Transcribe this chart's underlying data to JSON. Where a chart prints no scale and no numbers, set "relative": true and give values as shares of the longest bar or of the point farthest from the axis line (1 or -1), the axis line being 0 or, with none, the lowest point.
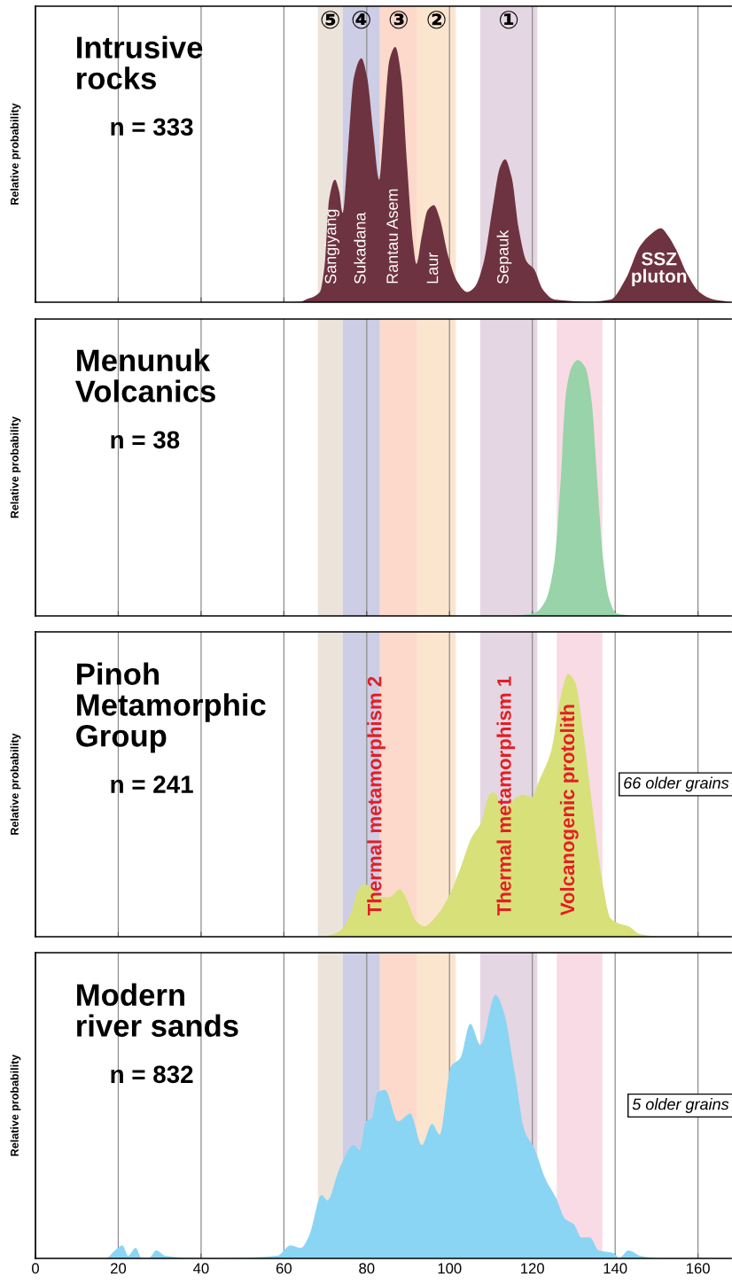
{
  "chart_data": [
    {
      "type": "area",
      "relative": true,
      "title": "Intrusive\nrocks",
      "subtitle": "n = 333",
      "ylabel": "Relative probability",
      "xlim": [
        0,
        168
      ],
      "xticks": [
        0,
        20,
        40,
        60,
        80,
        100,
        120,
        140,
        160
      ],
      "tick_labels": false,
      "grid": "x",
      "bands": [
        {
          "axis": "x",
          "from": 68.2,
          "to": 74.2,
          "label": "⑤",
          "color": "#ece3da"
        },
        {
          "axis": "x",
          "from": 74.2,
          "to": 83.2,
          "label": "④",
          "color": "#cdcde6"
        },
        {
          "axis": "x",
          "from": 83.2,
          "to": 92.2,
          "label": "③",
          "color": "#fdd9cb"
        },
        {
          "axis": "x",
          "from": 92.2,
          "to": 101.5,
          "label": "②",
          "color": "#fbe5cf"
        },
        {
          "axis": "x",
          "from": 107.4,
          "to": 121.2,
          "label": "①",
          "color": "#e4d6e2"
        }
      ],
      "annotations": [
        "Sangiyang",
        "Sukadana",
        "Rantau Asem",
        "Laur",
        "Sepauk",
        "SSZ\npluton"
      ],
      "series": [
        {
          "color": "#6e3340",
          "x": [
            60,
            64.1,
            65.3,
            68.7,
            69.8,
            70.9,
            72.3,
            73.4,
            74.2,
            75.5,
            76.9,
            78.7,
            80.1,
            81.6,
            83.0,
            84.0,
            85.5,
            86.9,
            88.3,
            89.7,
            91.2,
            92.0,
            93.3,
            94.7,
            96.2,
            97.6,
            99.7,
            101.9,
            104.3,
            106.1,
            108.3,
            110.4,
            112.2,
            113.4,
            115.0,
            116.8,
            118.6,
            120.4,
            122.5,
            125.4,
            133.9,
            138.9,
            142.5,
            146.0,
            148.9,
            151.0,
            152.8,
            154.6,
            157.4,
            160.3,
            163.8,
            167.2
          ],
          "values": [
            0,
            0.002,
            0.01,
            0.04,
            0.14,
            0.4,
            0.48,
            0.43,
            0.35,
            0.6,
            0.88,
            0.956,
            0.88,
            0.66,
            0.48,
            0.66,
            0.95,
            1.0,
            0.89,
            0.55,
            0.23,
            0.15,
            0.26,
            0.36,
            0.38,
            0.33,
            0.18,
            0.08,
            0.04,
            0.06,
            0.16,
            0.37,
            0.53,
            0.56,
            0.49,
            0.28,
            0.16,
            0.13,
            0.05,
            0.01,
            0.002,
            0.01,
            0.09,
            0.22,
            0.27,
            0.29,
            0.26,
            0.21,
            0.11,
            0.04,
            0.01,
            0.002
          ]
        }
      ]
    },
    {
      "type": "area",
      "relative": true,
      "title": "Menunuk\nVolcanics",
      "subtitle": "n = 38",
      "ylabel": "Relative probability",
      "xlim": [
        0,
        168
      ],
      "xticks": [
        0,
        20,
        40,
        60,
        80,
        100,
        120,
        140,
        160
      ],
      "tick_labels": false,
      "grid": "x",
      "bands": [
        {
          "axis": "x",
          "from": 68.2,
          "to": 74.2,
          "color": "#ece3da"
        },
        {
          "axis": "x",
          "from": 74.2,
          "to": 83.2,
          "color": "#cdcde6"
        },
        {
          "axis": "x",
          "from": 83.2,
          "to": 92.2,
          "color": "#fdd9cb"
        },
        {
          "axis": "x",
          "from": 92.2,
          "to": 101.5,
          "color": "#fbe5cf"
        },
        {
          "axis": "x",
          "from": 107.4,
          "to": 121.2,
          "color": "#e4d6e2"
        },
        {
          "axis": "x",
          "from": 125.9,
          "to": 136.9,
          "color": "#f8dbe4"
        }
      ],
      "series": [
        {
          "color": "#98d3a9",
          "x": [
            115.4,
            120.4,
            123.2,
            125.4,
            126.8,
            128.2,
            129.6,
            131.0,
            132.8,
            134.3,
            135.7,
            137.1,
            138.5,
            140.3,
            144.2
          ],
          "values": [
            0,
            0.01,
            0.06,
            0.22,
            0.52,
            0.88,
            0.976,
            1.0,
            0.97,
            0.84,
            0.52,
            0.22,
            0.07,
            0.01,
            0
          ]
        }
      ]
    },
    {
      "type": "area",
      "relative": true,
      "title": "Pinoh\nMetamorphic\nGroup",
      "subtitle": "n = 241",
      "ylabel": "Relative probability",
      "xlim": [
        0,
        168
      ],
      "xticks": [
        0,
        20,
        40,
        60,
        80,
        100,
        120,
        140,
        160
      ],
      "tick_labels": false,
      "grid": "x",
      "bands": [
        {
          "axis": "x",
          "from": 68.2,
          "to": 74.2,
          "color": "#ece3da"
        },
        {
          "axis": "x",
          "from": 74.2,
          "to": 83.2,
          "color": "#cdcde6"
        },
        {
          "axis": "x",
          "from": 83.2,
          "to": 92.2,
          "color": "#fdd9cb"
        },
        {
          "axis": "x",
          "from": 92.2,
          "to": 101.5,
          "color": "#fbe5cf"
        },
        {
          "axis": "x",
          "from": 107.4,
          "to": 121.2,
          "color": "#e4d6e2"
        },
        {
          "axis": "x",
          "from": 125.9,
          "to": 136.9,
          "color": "#f8dbe4"
        }
      ],
      "annotations": [
        "Thermal metamorphism 2",
        "Thermal metamorphism 1",
        "Volcanogenic protolith",
        "66 older grains"
      ],
      "series": [
        {
          "color": "#d8e07a",
          "x": [
            69.8,
            73.4,
            76.2,
            78.0,
            79.4,
            81.2,
            83.3,
            85.5,
            88.0,
            89.7,
            91.9,
            94.0,
            96.9,
            99.7,
            102.6,
            105.4,
            107.5,
            109.7,
            110.7,
            113.2,
            116.1,
            117.9,
            119.7,
            121.8,
            124.6,
            126.8,
            128.6,
            130.3,
            132.5,
            134.6,
            136.8,
            138.9,
            141.0,
            143.2,
            146.0,
            150.3
          ],
          "values": [
            0,
            0.02,
            0.09,
            0.18,
            0.2,
            0.19,
            0.15,
            0.15,
            0.18,
            0.14,
            0.06,
            0.04,
            0.08,
            0.15,
            0.26,
            0.38,
            0.43,
            0.54,
            0.55,
            0.49,
            0.53,
            0.54,
            0.53,
            0.6,
            0.71,
            0.91,
            1.0,
            0.97,
            0.75,
            0.48,
            0.22,
            0.07,
            0.05,
            0.04,
            0.01,
            0
          ]
        }
      ]
    },
    {
      "type": "area",
      "relative": true,
      "title": "Modern\nriver sands",
      "subtitle": "n = 832",
      "ylabel": "Relative probability",
      "xlim": [
        0,
        168
      ],
      "xticks": [
        0,
        20,
        40,
        60,
        80,
        100,
        120,
        140,
        160
      ],
      "tick_labels": "x",
      "grid": "x",
      "bands": [
        {
          "axis": "x",
          "from": 68.2,
          "to": 74.2,
          "color": "#ece3da"
        },
        {
          "axis": "x",
          "from": 74.2,
          "to": 83.2,
          "color": "#cdcde6"
        },
        {
          "axis": "x",
          "from": 83.2,
          "to": 92.2,
          "color": "#fdd9cb"
        },
        {
          "axis": "x",
          "from": 92.2,
          "to": 101.5,
          "color": "#fbe5cf"
        },
        {
          "axis": "x",
          "from": 107.4,
          "to": 121.2,
          "color": "#e4d6e2"
        },
        {
          "axis": "x",
          "from": 125.9,
          "to": 136.9,
          "color": "#f8dbe4"
        }
      ],
      "annotations": [
        "5 older grains"
      ],
      "series": [
        {
          "color": "#8ad5f3",
          "x": [
            0,
            17.1,
            19.2,
            21.0,
            22.4,
            24.2,
            25.6,
            27.4,
            29.2,
            31.3,
            41.3,
            58.4,
            61.6,
            64.1,
            66.2,
            69.1,
            70.5,
            73.4,
            76.9,
            78.3,
            79.8,
            81.2,
            82.6,
            84.4,
            87.6,
            90.5,
            93.3,
            95.8,
            97.6,
            100.4,
            102.6,
            105.0,
            107.5,
            111.1,
            113.2,
            115.7,
            118.2,
            120.4,
            123.2,
            125.7,
            127.9,
            130.0,
            131.8,
            133.9,
            136.0,
            139.6,
            141.0,
            143.2,
            146.0,
            150.3
          ],
          "values": [
            0.002,
            0.002,
            0.03,
            0.05,
            0.01,
            0.04,
            0.002,
            0.002,
            0.03,
            0.01,
            0,
            0.01,
            0.05,
            0.04,
            0.09,
            0.24,
            0.22,
            0.34,
            0.43,
            0.41,
            0.52,
            0.53,
            0.63,
            0.64,
            0.52,
            0.55,
            0.43,
            0.51,
            0.47,
            0.73,
            0.76,
            0.89,
            0.81,
            1.0,
            0.93,
            0.71,
            0.48,
            0.42,
            0.3,
            0.23,
            0.15,
            0.13,
            0.08,
            0.08,
            0.03,
            0.02,
            0.002,
            0.03,
            0.01,
            0
          ]
        }
      ]
    }
  ]
}
